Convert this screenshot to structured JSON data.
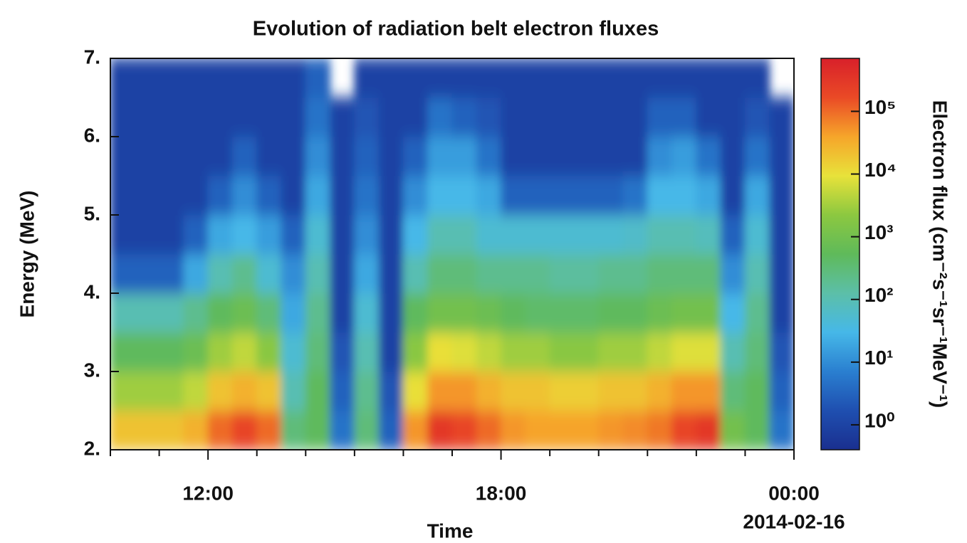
{
  "chart_data": {
    "type": "heatmap",
    "title": "Evolution of radiation belt electron fluxes",
    "xlabel": "Time",
    "ylabel": "Energy (MeV)",
    "colorbar_label": "Electron flux (cm⁻²s⁻¹sr⁻¹MeV⁻¹)",
    "xlim": [
      10,
      24
    ],
    "xticks": [
      {
        "value": 12,
        "label": "12:00"
      },
      {
        "value": 18,
        "label": "18:00"
      },
      {
        "value": 24,
        "label": "00:00"
      }
    ],
    "xtick_sublabel": "2014-02-16",
    "xminor_ticks": [
      10,
      11,
      13,
      14,
      15,
      16,
      17,
      19,
      20,
      21,
      22,
      23
    ],
    "ylim": [
      2,
      7
    ],
    "yticks": [
      {
        "value": 2,
        "label": "2."
      },
      {
        "value": 3,
        "label": "3."
      },
      {
        "value": 4,
        "label": "4."
      },
      {
        "value": 5,
        "label": "5."
      },
      {
        "value": 6,
        "label": "6."
      },
      {
        "value": 7,
        "label": "7."
      }
    ],
    "clim": [
      0.4,
      700000
    ],
    "color_log": true,
    "cticks": [
      {
        "value": 1,
        "label": "10⁰"
      },
      {
        "value": 10,
        "label": "10¹"
      },
      {
        "value": 100,
        "label": "10²"
      },
      {
        "value": 1000,
        "label": "10³"
      },
      {
        "value": 10000,
        "label": "10⁴"
      },
      {
        "value": 100000,
        "label": "10⁵"
      }
    ],
    "colormap": [
      "#1a2f8f",
      "#1f4fb0",
      "#2a7fd0",
      "#46b8e8",
      "#5cbfa8",
      "#5fba5a",
      "#8cc840",
      "#e8e23a",
      "#f6a52a",
      "#ea4a26",
      "#d8202a"
    ],
    "xbins": [
      10,
      10.5,
      11,
      11.5,
      12,
      12.5,
      13,
      13.5,
      14,
      14.5,
      15,
      15.5,
      16,
      16.5,
      17,
      17.5,
      18,
      18.5,
      19,
      19.5,
      20,
      20.5,
      21,
      21.5,
      22,
      22.5,
      23,
      23.5,
      24
    ],
    "ybins": [
      2,
      2.5,
      3,
      3.5,
      4,
      4.5,
      5,
      5.5,
      6,
      6.5,
      7
    ],
    "z": [
      [
        20000,
        3000,
        500,
        100,
        3,
        1,
        1,
        1,
        1,
        1
      ],
      [
        20000,
        3000,
        500,
        100,
        3,
        1,
        1,
        1,
        1,
        1
      ],
      [
        20000,
        3000,
        500,
        100,
        3,
        1,
        1,
        1,
        1,
        1
      ],
      [
        30000,
        5000,
        800,
        200,
        20,
        3,
        1,
        1,
        1,
        1
      ],
      [
        100000,
        20000,
        3000,
        500,
        100,
        20,
        3,
        1,
        1,
        1
      ],
      [
        200000,
        30000,
        5000,
        800,
        200,
        30,
        10,
        3,
        1,
        1
      ],
      [
        100000,
        20000,
        2000,
        300,
        50,
        15,
        3,
        1,
        1,
        1
      ],
      [
        300,
        100,
        50,
        20,
        10,
        3,
        1,
        1,
        1,
        1
      ],
      [
        500,
        500,
        300,
        200,
        100,
        50,
        20,
        10,
        5,
        3
      ],
      [
        5,
        3,
        2,
        1,
        1,
        1,
        1,
        1,
        1,
        null
      ],
      [
        300,
        200,
        100,
        50,
        20,
        10,
        5,
        3,
        2,
        1
      ],
      [
        3,
        2,
        1,
        1,
        1,
        1,
        1,
        1,
        1,
        1
      ],
      [
        50000,
        10000,
        2000,
        500,
        100,
        30,
        10,
        3,
        1,
        1
      ],
      [
        300000,
        50000,
        10000,
        1000,
        300,
        100,
        30,
        15,
        5,
        1
      ],
      [
        200000,
        50000,
        8000,
        1000,
        300,
        100,
        30,
        15,
        3,
        1
      ],
      [
        100000,
        30000,
        5000,
        800,
        200,
        50,
        20,
        5,
        2,
        1
      ],
      [
        50000,
        20000,
        3000,
        500,
        200,
        50,
        3,
        1,
        1,
        1
      ],
      [
        40000,
        20000,
        3000,
        400,
        200,
        50,
        3,
        1,
        1,
        1
      ],
      [
        40000,
        15000,
        2000,
        400,
        150,
        50,
        3,
        1,
        1,
        1
      ],
      [
        40000,
        15000,
        2000,
        400,
        150,
        50,
        3,
        1,
        1,
        1
      ],
      [
        50000,
        20000,
        3000,
        500,
        200,
        50,
        3,
        1,
        1,
        1
      ],
      [
        60000,
        20000,
        3000,
        500,
        200,
        60,
        5,
        1,
        1,
        1
      ],
      [
        80000,
        30000,
        5000,
        800,
        300,
        100,
        30,
        10,
        3,
        1
      ],
      [
        200000,
        50000,
        8000,
        1000,
        300,
        100,
        30,
        15,
        3,
        1
      ],
      [
        300000,
        50000,
        8000,
        1000,
        300,
        80,
        20,
        5,
        1,
        1
      ],
      [
        1000,
        300,
        100,
        30,
        10,
        3,
        1,
        1,
        1,
        1
      ],
      [
        500,
        500,
        300,
        200,
        100,
        50,
        20,
        5,
        2,
        1
      ],
      [
        5,
        3,
        2,
        1,
        1,
        1,
        1,
        1,
        1,
        null
      ]
    ]
  }
}
